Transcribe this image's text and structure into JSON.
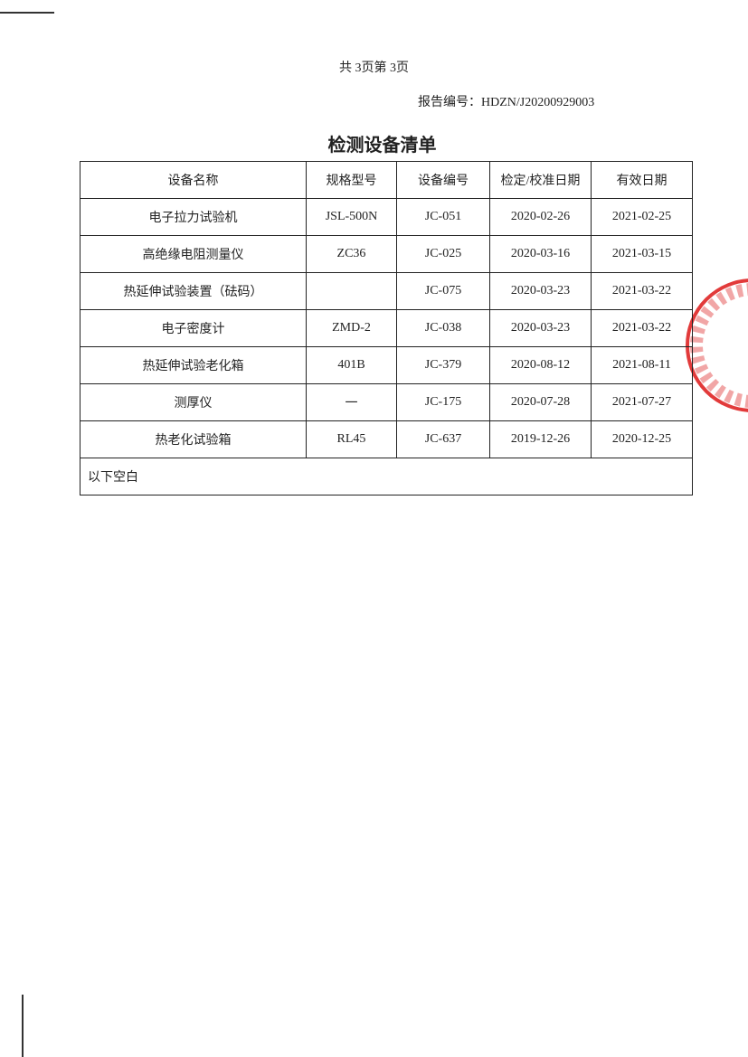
{
  "header": {
    "page_info": "共 3页第 3页",
    "report_no": "报告编号：HDZN/J20200929003"
  },
  "title": "检测设备清单",
  "table": {
    "columns": [
      "设备名称",
      "规格型号",
      "设备编号",
      "检定/校准日期",
      "有效日期"
    ],
    "rows": [
      [
        "电子拉力试验机",
        "JSL-500N",
        "JC-051",
        "2020-02-26",
        "2021-02-25"
      ],
      [
        "高绝缘电阻测量仪",
        "ZC36",
        "JC-025",
        "2020-03-16",
        "2021-03-15"
      ],
      [
        "热延伸试验装置（砝码）",
        null,
        "JC-075",
        "2020-03-23",
        "2021-03-22"
      ],
      [
        "电子密度计",
        "ZMD-2",
        "JC-038",
        "2020-03-23",
        "2021-03-22"
      ],
      [
        "热延伸试验老化箱",
        "401B",
        "JC-379",
        "2020-08-12",
        "2021-08-11"
      ],
      [
        "测厚仪",
        "一",
        "JC-175",
        "2020-07-28",
        "2021-07-27"
      ],
      [
        "热老化试验箱",
        "RL45",
        "JC-637",
        "2019-12-26",
        "2020-12-25"
      ]
    ],
    "note": "以下空白"
  }
}
